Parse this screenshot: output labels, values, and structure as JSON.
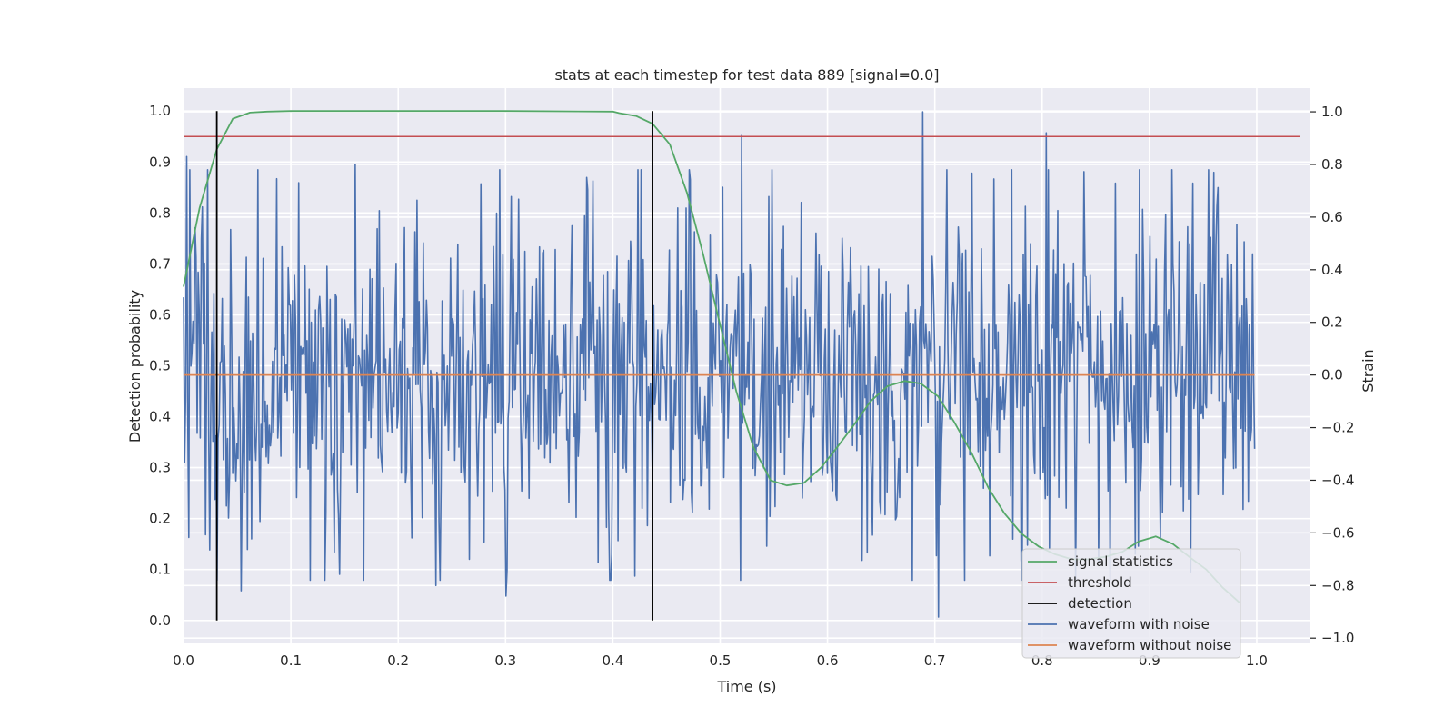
{
  "chart_data": {
    "type": "line",
    "title": "stats at each timestep for test data 889 [signal=0.0]",
    "xlabel": "Time (s)",
    "ylabel_left": "Detection probability",
    "ylabel_right": "Strain",
    "xlim": [
      0.0,
      1.05
    ],
    "ylim_left": [
      -0.045,
      1.045
    ],
    "ylim_right": [
      -1.02,
      1.09
    ],
    "x_ticks": [
      0.0,
      0.1,
      0.2,
      0.3,
      0.4,
      0.5,
      0.6,
      0.7,
      0.8,
      0.9,
      1.0
    ],
    "x_tick_labels": [
      "0.0",
      "0.1",
      "0.2",
      "0.3",
      "0.4",
      "0.5",
      "0.6",
      "0.7",
      "0.8",
      "0.9",
      "1.0"
    ],
    "y_left_ticks": [
      0.0,
      0.1,
      0.2,
      0.3,
      0.4,
      0.5,
      0.6,
      0.7,
      0.8,
      0.9,
      1.0
    ],
    "y_left_tick_labels": [
      "0.0",
      "0.1",
      "0.2",
      "0.3",
      "0.4",
      "0.5",
      "0.6",
      "0.7",
      "0.8",
      "0.9",
      "1.0"
    ],
    "y_right_ticks": [
      -1.0,
      -0.8,
      -0.6,
      -0.4,
      -0.2,
      0.0,
      0.2,
      0.4,
      0.6,
      0.8,
      1.0
    ],
    "y_right_tick_labels": [
      "−1.0",
      "−0.8",
      "−0.6",
      "−0.4",
      "−0.2",
      "0.0",
      "0.2",
      "0.4",
      "0.6",
      "0.8",
      "1.0"
    ],
    "grid": true,
    "legend_position": "bottom-right",
    "series": [
      {
        "name": "signal statistics",
        "axis": "left",
        "color": "#55a868",
        "x": [
          0.0,
          0.015,
          0.031,
          0.046,
          0.062,
          0.078,
          0.1,
          0.2,
          0.3,
          0.4,
          0.406,
          0.422,
          0.437,
          0.453,
          0.469,
          0.484,
          0.5,
          0.515,
          0.531,
          0.547,
          0.562,
          0.578,
          0.594,
          0.609,
          0.625,
          0.64,
          0.656,
          0.672,
          0.687,
          0.703,
          0.718,
          0.734,
          0.75,
          0.765,
          0.781,
          0.797,
          0.812,
          0.828,
          0.843,
          0.859,
          0.875,
          0.89,
          0.906,
          0.922,
          0.937,
          0.953,
          0.968,
          0.984
        ],
        "y": [
          0.655,
          0.81,
          0.925,
          0.985,
          0.997,
          0.999,
          1.0,
          1.0,
          1.0,
          0.999,
          0.996,
          0.99,
          0.975,
          0.935,
          0.84,
          0.72,
          0.58,
          0.45,
          0.34,
          0.275,
          0.265,
          0.27,
          0.3,
          0.34,
          0.385,
          0.43,
          0.46,
          0.47,
          0.465,
          0.44,
          0.39,
          0.33,
          0.26,
          0.21,
          0.17,
          0.145,
          0.13,
          0.12,
          0.12,
          0.125,
          0.135,
          0.155,
          0.165,
          0.15,
          0.125,
          0.1,
          0.065,
          0.035
        ]
      },
      {
        "name": "threshold",
        "axis": "left",
        "color": "#c44e52",
        "x": [
          0.0,
          1.04
        ],
        "y": [
          0.95,
          0.95
        ]
      },
      {
        "name": "detection",
        "axis": "left",
        "color": "#000000",
        "segments": [
          {
            "x": 0.031,
            "y0": 0.0,
            "y1": 1.0
          },
          {
            "x": 0.437,
            "y0": 0.0,
            "y1": 1.0
          }
        ]
      },
      {
        "name": "waveform with noise",
        "axis": "right",
        "color": "#4c72b0",
        "x_range": [
          0.0,
          0.998
        ],
        "samples": 1024,
        "amplitude_std": 0.33,
        "seed": 889,
        "peaks": [
          {
            "x": 0.003,
            "y": 0.83
          },
          {
            "x": 0.054,
            "y": -0.82
          },
          {
            "x": 0.16,
            "y": 0.8
          },
          {
            "x": 0.3,
            "y": -0.84
          },
          {
            "x": 0.235,
            "y": -0.8
          },
          {
            "x": 0.52,
            "y": 0.91
          },
          {
            "x": 0.689,
            "y": 1.0
          },
          {
            "x": 0.703,
            "y": -0.92
          },
          {
            "x": 0.804,
            "y": 0.92
          },
          {
            "x": 0.96,
            "y": 0.77
          },
          {
            "x": 0.996,
            "y": 0.46
          }
        ]
      },
      {
        "name": "waveform without noise",
        "axis": "right",
        "color": "#dd8452",
        "x": [
          0.0,
          0.998
        ],
        "y": [
          0.0,
          0.0
        ]
      }
    ]
  }
}
